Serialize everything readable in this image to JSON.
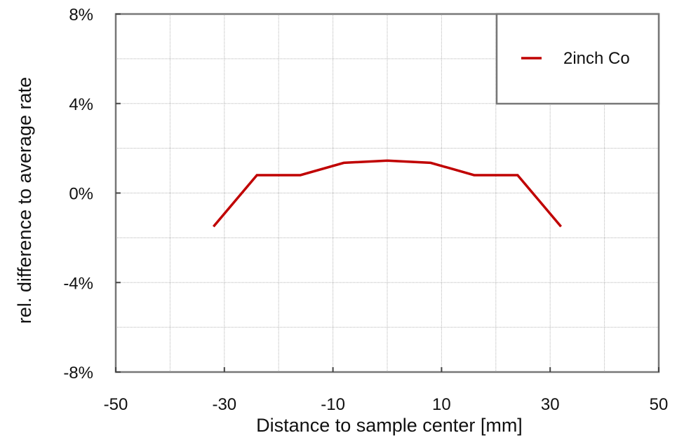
{
  "chart_data": {
    "type": "line",
    "title": "",
    "xlabel": "Distance to sample center [mm]",
    "ylabel": "rel. difference to average rate",
    "xlim": [
      -50,
      50
    ],
    "ylim": [
      -8,
      8
    ],
    "x_ticks": [
      -50,
      -30,
      -10,
      10,
      30,
      50
    ],
    "y_ticks": [
      8,
      4,
      0,
      -4,
      -8
    ],
    "x_tick_labels": [
      "-50",
      "-30",
      "-10",
      "10",
      "30",
      "50"
    ],
    "y_tick_labels": [
      "8%",
      "4%",
      "0%",
      "-4%",
      "-8%"
    ],
    "grid": true,
    "legend_position": "top-right",
    "series": [
      {
        "name": "2inch Co",
        "color": "#c00000",
        "x": [
          -32,
          -24,
          -16,
          -8,
          0,
          8,
          16,
          24,
          32
        ],
        "y": [
          -1.5,
          0.8,
          0.8,
          1.35,
          1.45,
          1.35,
          0.8,
          0.8,
          -1.5
        ]
      }
    ]
  }
}
